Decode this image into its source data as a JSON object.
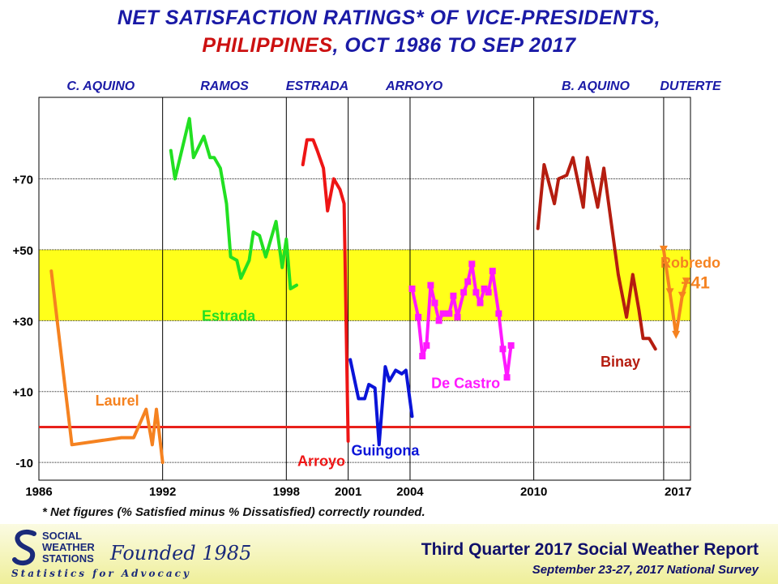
{
  "title": {
    "line1": "NET SATISFACTION RATINGS* OF VICE-PRESIDENTS,",
    "line2_red": "PHILIPPINES",
    "line2_rest": ", OCT 1986 TO SEP 2017"
  },
  "footnote": "* Net figures (% Satisfied minus % Dissatisfied) correctly rounded.",
  "footer": {
    "org_line1": "SOCIAL",
    "org_line2": "WEATHER",
    "org_line3": "STATIONS",
    "founded": "Founded 1985",
    "tagline": "Statistics for Advocacy",
    "report_title": "Third Quarter 2017 Social Weather Report",
    "report_subtitle": "September 23-27, 2017 National Survey"
  },
  "chart_data": {
    "type": "line",
    "title": "NET SATISFACTION RATINGS* OF VICE-PRESIDENTS, PHILIPPINES, OCT 1986 TO SEP 2017",
    "xlabel": "",
    "ylabel": "",
    "xlim": [
      1986,
      2017.6
    ],
    "ylim": [
      -15,
      93
    ],
    "x_ticks": [
      {
        "value": 1986,
        "label": "1986"
      },
      {
        "value": 1992,
        "label": "1992"
      },
      {
        "value": 1998,
        "label": "1998"
      },
      {
        "value": 2001,
        "label": "2001"
      },
      {
        "value": 2004,
        "label": "2004"
      },
      {
        "value": 2010,
        "label": "2010"
      },
      {
        "value": 2017,
        "label": "2017"
      }
    ],
    "y_ticks": [
      {
        "value": -10,
        "label": "-10"
      },
      {
        "value": 10,
        "label": "+10"
      },
      {
        "value": 30,
        "label": "+30"
      },
      {
        "value": 50,
        "label": "+50"
      },
      {
        "value": 70,
        "label": "+70"
      }
    ],
    "highlight_band": {
      "from": 30,
      "to": 50,
      "color": "#ffff1a"
    },
    "zero_line": {
      "value": 0,
      "color": "#e8211b"
    },
    "admin_dividers": [
      1992,
      1998,
      2001,
      2004,
      2010,
      2016.3
    ],
    "administrations": [
      {
        "label": "C. AQUINO",
        "x": 1989
      },
      {
        "label": "RAMOS",
        "x": 1995
      },
      {
        "label": "ESTRADA",
        "x": 1999.5
      },
      {
        "label": "ARROYO",
        "x": 2004.2
      },
      {
        "label": "B. AQUINO",
        "x": 2013
      },
      {
        "label": "DUTERTE",
        "x": 2017.6
      }
    ],
    "series": [
      {
        "name": "Laurel",
        "color": "#f58220",
        "label_at": [
          1989.8,
          6
        ],
        "points": [
          [
            1986.6,
            44
          ],
          [
            1987.6,
            -5
          ],
          [
            1990,
            -3
          ],
          [
            1990.6,
            -3
          ],
          [
            1991.2,
            5
          ],
          [
            1991.5,
            -5
          ],
          [
            1991.7,
            5
          ],
          [
            1992,
            -10
          ]
        ]
      },
      {
        "name": "Estrada",
        "color": "#22e022",
        "label_at": [
          1995.2,
          30
        ],
        "points": [
          [
            1992.4,
            78
          ],
          [
            1992.6,
            70
          ],
          [
            1993.3,
            87
          ],
          [
            1993.5,
            76
          ],
          [
            1994,
            82
          ],
          [
            1994.3,
            76
          ],
          [
            1994.5,
            76
          ],
          [
            1994.8,
            73
          ],
          [
            1995.1,
            63
          ],
          [
            1995.3,
            48
          ],
          [
            1995.6,
            47
          ],
          [
            1995.8,
            42
          ],
          [
            1996.2,
            47
          ],
          [
            1996.4,
            55
          ],
          [
            1996.7,
            54
          ],
          [
            1997,
            48
          ],
          [
            1997.2,
            52
          ],
          [
            1997.5,
            58
          ],
          [
            1997.8,
            45
          ],
          [
            1998,
            53
          ],
          [
            1998.2,
            39
          ],
          [
            1998.5,
            40
          ]
        ]
      },
      {
        "name": "Arroyo",
        "color": "#ee1515",
        "label_at": [
          1999.7,
          -11
        ],
        "points": [
          [
            1998.8,
            74
          ],
          [
            1999,
            81
          ],
          [
            1999.3,
            81
          ],
          [
            1999.5,
            78
          ],
          [
            1999.8,
            73
          ],
          [
            2000,
            61
          ],
          [
            2000.3,
            70
          ],
          [
            2000.6,
            67
          ],
          [
            2000.8,
            63
          ],
          [
            2001,
            -4
          ]
        ]
      },
      {
        "name": "Guingona",
        "color": "#0a14d8",
        "label_at": [
          2002.8,
          -8
        ],
        "points": [
          [
            2001.1,
            19
          ],
          [
            2001.5,
            8
          ],
          [
            2001.8,
            8
          ],
          [
            2002,
            12
          ],
          [
            2002.3,
            11
          ],
          [
            2002.5,
            -5
          ],
          [
            2002.8,
            17
          ],
          [
            2003,
            13
          ],
          [
            2003.3,
            16
          ],
          [
            2003.6,
            15
          ],
          [
            2003.8,
            16
          ],
          [
            2004.1,
            3
          ]
        ]
      },
      {
        "name": "De Castro",
        "color": "#ff19ff",
        "label_at": [
          2006.7,
          11
        ],
        "markers": true,
        "points": [
          [
            2004.1,
            39
          ],
          [
            2004.4,
            31
          ],
          [
            2004.6,
            20
          ],
          [
            2004.8,
            23
          ],
          [
            2005,
            40
          ],
          [
            2005.2,
            35
          ],
          [
            2005.4,
            30
          ],
          [
            2005.6,
            32
          ],
          [
            2005.9,
            32
          ],
          [
            2006.1,
            37
          ],
          [
            2006.3,
            31
          ],
          [
            2006.6,
            38
          ],
          [
            2006.8,
            41
          ],
          [
            2007,
            46
          ],
          [
            2007.2,
            38
          ],
          [
            2007.4,
            35
          ],
          [
            2007.6,
            39
          ],
          [
            2007.8,
            38
          ],
          [
            2008,
            44
          ],
          [
            2008.3,
            32
          ],
          [
            2008.5,
            22
          ],
          [
            2008.7,
            14
          ],
          [
            2008.9,
            23
          ]
        ]
      },
      {
        "name": "Binay",
        "color": "#b51d10",
        "label_at": [
          2014.2,
          17
        ],
        "points": [
          [
            2010.2,
            56
          ],
          [
            2010.5,
            74
          ],
          [
            2011,
            63
          ],
          [
            2011.2,
            70
          ],
          [
            2011.6,
            71
          ],
          [
            2011.9,
            76
          ],
          [
            2012.4,
            62
          ],
          [
            2012.6,
            76
          ],
          [
            2013.1,
            62
          ],
          [
            2013.4,
            73
          ],
          [
            2014.1,
            43
          ],
          [
            2014.5,
            31
          ],
          [
            2014.8,
            43
          ],
          [
            2015.1,
            33
          ],
          [
            2015.3,
            25
          ],
          [
            2015.6,
            25
          ],
          [
            2015.9,
            22
          ]
        ]
      },
      {
        "name": "Robredo",
        "color": "#f58220",
        "label_at": [
          2017.6,
          45
        ],
        "markers": "triangle",
        "points": [
          [
            2016.3,
            50
          ],
          [
            2016.6,
            38
          ],
          [
            2016.9,
            26
          ],
          [
            2017.2,
            37
          ],
          [
            2017.4,
            41
          ]
        ]
      }
    ],
    "annotation": {
      "text": "+41",
      "x": 2017.6,
      "y": 41
    }
  }
}
